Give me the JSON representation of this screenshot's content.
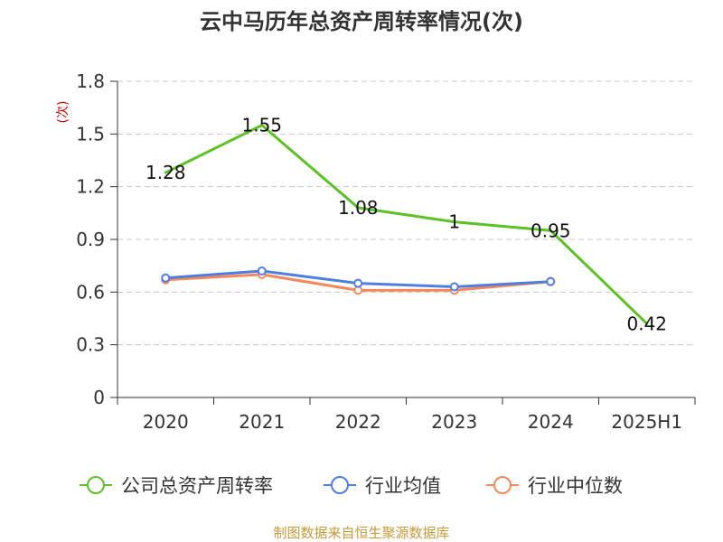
{
  "colors": {
    "series_main": "#5cc125",
    "series_avg": "#4e7fe0",
    "series_median": "#f5885a",
    "axis": "#333333",
    "grid": "#c8c8c8",
    "unit": "#cc0000",
    "source": "#c79a3a"
  },
  "chart_data": {
    "type": "line",
    "title": "云中马历年总资产周转率情况(次)",
    "ylabel": "(次)",
    "xlabel": "",
    "categories": [
      "2020",
      "2021",
      "2022",
      "2023",
      "2024",
      "2025H1"
    ],
    "ylim": [
      0,
      1.8
    ],
    "yticks": [
      0,
      0.3,
      0.6,
      0.9,
      1.2,
      1.5,
      1.8
    ],
    "ytick_labels": [
      "0",
      "0.3",
      "0.6",
      "0.9",
      "1.2",
      "1.5",
      "1.8"
    ],
    "grid": true,
    "legend_position": "bottom",
    "series": [
      {
        "name": "公司总资产周转率",
        "color_key": "series_main",
        "values": [
          1.28,
          1.55,
          1.08,
          1.0,
          0.95,
          0.42
        ],
        "data_labels": [
          "1.28",
          "1.55",
          "1.08",
          "1",
          "0.95",
          "0.42"
        ],
        "markers": false
      },
      {
        "name": "行业均值",
        "color_key": "series_avg",
        "values": [
          0.68,
          0.72,
          0.65,
          0.63,
          0.66,
          null
        ],
        "markers": true
      },
      {
        "name": "行业中位数",
        "color_key": "series_median",
        "values": [
          0.67,
          0.7,
          0.61,
          0.61,
          0.66,
          null
        ],
        "markers": true
      }
    ],
    "source": "制图数据来自恒生聚源数据库"
  }
}
